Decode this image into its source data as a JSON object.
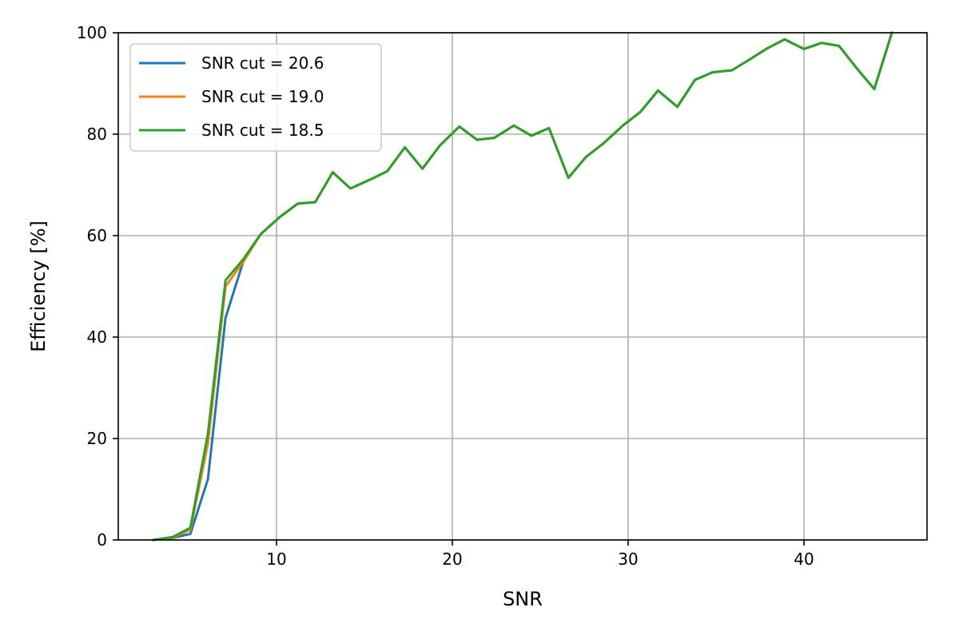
{
  "chart_data": {
    "type": "line",
    "xlabel": "SNR",
    "ylabel": "Efficiency [%]",
    "xlim": [
      1,
      47
    ],
    "ylim": [
      0,
      100
    ],
    "xticks": [
      10,
      20,
      30,
      40
    ],
    "yticks": [
      0,
      20,
      40,
      60,
      80,
      100
    ],
    "grid": true,
    "legend_position": "top-left",
    "series": [
      {
        "name": "SNR cut = 20.6",
        "color": "#1f77b4",
        "points": [
          [
            3.0,
            0.0
          ],
          [
            4.1,
            0.4
          ],
          [
            5.1,
            1.2
          ],
          [
            6.1,
            12.0
          ],
          [
            7.1,
            43.8
          ],
          [
            8.1,
            54.8
          ],
          [
            9.1,
            60.3
          ],
          [
            10.2,
            63.7
          ],
          [
            11.2,
            66.3
          ],
          [
            12.2,
            66.6
          ],
          [
            13.2,
            72.5
          ],
          [
            14.2,
            69.3
          ],
          [
            15.3,
            71.0
          ],
          [
            16.3,
            72.7
          ],
          [
            17.3,
            77.4
          ],
          [
            18.3,
            73.2
          ],
          [
            19.3,
            77.8
          ],
          [
            20.4,
            81.5
          ],
          [
            21.4,
            78.9
          ],
          [
            22.4,
            79.3
          ],
          [
            23.5,
            81.7
          ],
          [
            24.5,
            79.7
          ],
          [
            25.5,
            81.2
          ],
          [
            26.6,
            71.4
          ],
          [
            27.6,
            75.5
          ],
          [
            28.6,
            78.2
          ],
          [
            29.7,
            81.7
          ],
          [
            30.7,
            84.4
          ],
          [
            31.7,
            88.6
          ],
          [
            32.8,
            85.4
          ],
          [
            33.8,
            90.7
          ],
          [
            34.8,
            92.2
          ],
          [
            35.9,
            92.6
          ],
          [
            36.9,
            94.7
          ],
          [
            37.9,
            96.9
          ],
          [
            38.9,
            98.7
          ],
          [
            40.0,
            96.8
          ],
          [
            41.0,
            98.0
          ],
          [
            42.0,
            97.4
          ],
          [
            43.0,
            93.0
          ],
          [
            44.0,
            88.9
          ],
          [
            45.0,
            100.0
          ]
        ]
      },
      {
        "name": "SNR cut = 19.0",
        "color": "#ff7f0e",
        "points": [
          [
            3.0,
            0.0
          ],
          [
            4.1,
            0.5
          ],
          [
            5.1,
            2.0
          ],
          [
            6.1,
            19.0
          ],
          [
            7.1,
            50.0
          ],
          [
            8.1,
            54.8
          ],
          [
            9.1,
            60.3
          ],
          [
            10.2,
            63.7
          ],
          [
            11.2,
            66.3
          ],
          [
            12.2,
            66.6
          ],
          [
            13.2,
            72.5
          ],
          [
            14.2,
            69.3
          ],
          [
            15.3,
            71.0
          ],
          [
            16.3,
            72.7
          ],
          [
            17.3,
            77.4
          ],
          [
            18.3,
            73.2
          ],
          [
            19.3,
            77.8
          ],
          [
            20.4,
            81.5
          ],
          [
            21.4,
            78.9
          ],
          [
            22.4,
            79.3
          ],
          [
            23.5,
            81.7
          ],
          [
            24.5,
            79.7
          ],
          [
            25.5,
            81.2
          ],
          [
            26.6,
            71.4
          ],
          [
            27.6,
            75.5
          ],
          [
            28.6,
            78.2
          ],
          [
            29.7,
            81.7
          ],
          [
            30.7,
            84.4
          ],
          [
            31.7,
            88.6
          ],
          [
            32.8,
            85.4
          ],
          [
            33.8,
            90.7
          ],
          [
            34.8,
            92.2
          ],
          [
            35.9,
            92.6
          ],
          [
            36.9,
            94.7
          ],
          [
            37.9,
            96.9
          ],
          [
            38.9,
            98.7
          ],
          [
            40.0,
            96.8
          ],
          [
            41.0,
            98.0
          ],
          [
            42.0,
            97.4
          ],
          [
            43.0,
            93.0
          ],
          [
            44.0,
            88.9
          ],
          [
            45.0,
            100.0
          ]
        ]
      },
      {
        "name": "SNR cut = 18.5",
        "color": "#2ca02c",
        "points": [
          [
            3.0,
            0.0
          ],
          [
            4.1,
            0.6
          ],
          [
            5.1,
            2.4
          ],
          [
            6.1,
            21.0
          ],
          [
            7.1,
            51.2
          ],
          [
            8.1,
            55.3
          ],
          [
            9.1,
            60.3
          ],
          [
            10.2,
            63.7
          ],
          [
            11.2,
            66.3
          ],
          [
            12.2,
            66.6
          ],
          [
            13.2,
            72.5
          ],
          [
            14.2,
            69.3
          ],
          [
            15.3,
            71.0
          ],
          [
            16.3,
            72.7
          ],
          [
            17.3,
            77.4
          ],
          [
            18.3,
            73.2
          ],
          [
            19.3,
            77.8
          ],
          [
            20.4,
            81.5
          ],
          [
            21.4,
            78.9
          ],
          [
            22.4,
            79.3
          ],
          [
            23.5,
            81.7
          ],
          [
            24.5,
            79.7
          ],
          [
            25.5,
            81.2
          ],
          [
            26.6,
            71.4
          ],
          [
            27.6,
            75.5
          ],
          [
            28.6,
            78.2
          ],
          [
            29.7,
            81.7
          ],
          [
            30.7,
            84.4
          ],
          [
            31.7,
            88.6
          ],
          [
            32.8,
            85.4
          ],
          [
            33.8,
            90.7
          ],
          [
            34.8,
            92.2
          ],
          [
            35.9,
            92.6
          ],
          [
            36.9,
            94.7
          ],
          [
            37.9,
            96.9
          ],
          [
            38.9,
            98.7
          ],
          [
            40.0,
            96.8
          ],
          [
            41.0,
            98.0
          ],
          [
            42.0,
            97.4
          ],
          [
            43.0,
            93.0
          ],
          [
            44.0,
            88.9
          ],
          [
            45.0,
            100.0
          ]
        ]
      }
    ]
  }
}
